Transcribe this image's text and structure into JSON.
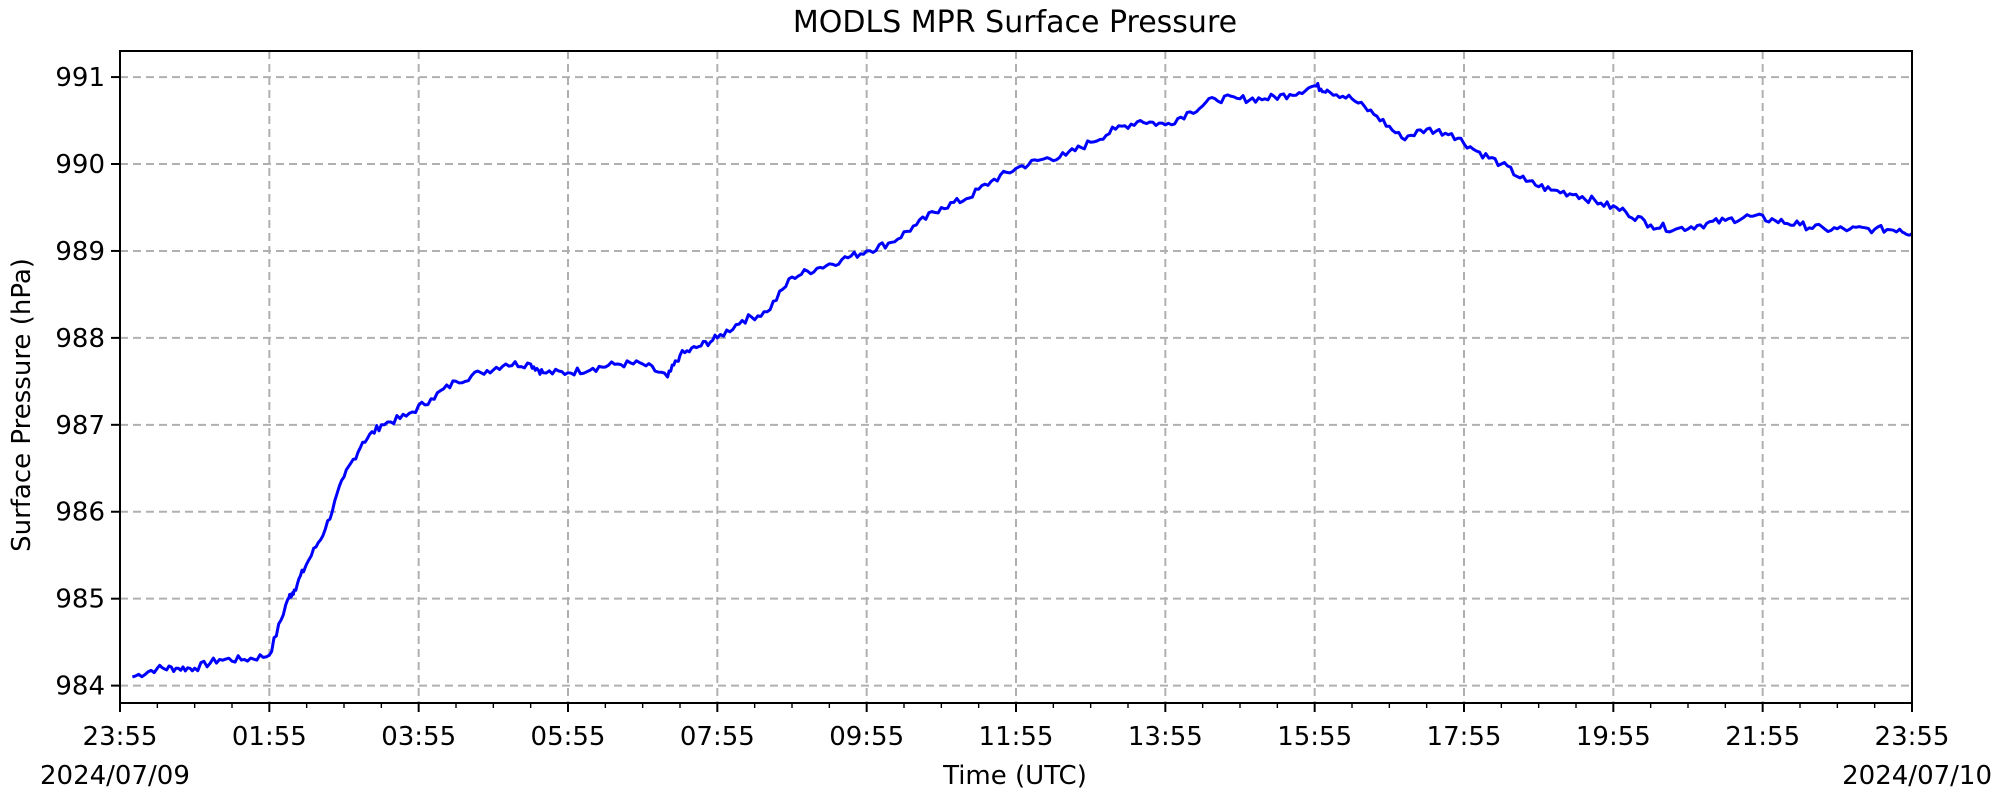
{
  "chart_data": {
    "type": "line",
    "title": "MODLS MPR Surface Pressure",
    "xlabel": "Time (UTC)",
    "ylabel": "Surface Pressure (hPa)",
    "x_unit": "hours",
    "x_tick_labels": [
      "23:55",
      "01:55",
      "03:55",
      "05:55",
      "07:55",
      "09:55",
      "11:55",
      "13:55",
      "15:55",
      "17:55",
      "19:55",
      "21:55",
      "23:55"
    ],
    "x_date_labels": {
      "start": "2024/07/09",
      "end": "2024/07/10"
    },
    "xlim": [
      "2024-07-09 23:55",
      "2024-07-10 23:55"
    ],
    "y_ticks": [
      984,
      985,
      986,
      987,
      988,
      989,
      990,
      991
    ],
    "ylim": [
      983.8,
      991.3
    ],
    "grid": true,
    "grid_style": "dashed",
    "legend": "none",
    "series": [
      {
        "color": "#0000ff",
        "x": [
          "2024-07-10 00:05",
          "2024-07-10 00:25",
          "2024-07-10 00:40",
          "2024-07-10 00:55",
          "2024-07-10 01:15",
          "2024-07-10 01:35",
          "2024-07-10 01:55",
          "2024-07-10 02:10",
          "2024-07-10 02:15",
          "2024-07-10 02:25",
          "2024-07-10 02:40",
          "2024-07-10 02:55",
          "2024-07-10 03:10",
          "2024-07-10 03:25",
          "2024-07-10 03:45",
          "2024-07-10 04:05",
          "2024-07-10 04:25",
          "2024-07-10 04:45",
          "2024-07-10 05:05",
          "2024-07-10 05:25",
          "2024-07-10 05:35",
          "2024-07-10 05:55",
          "2024-07-10 06:15",
          "2024-07-10 06:35",
          "2024-07-10 06:55",
          "2024-07-10 07:15",
          "2024-07-10 07:25",
          "2024-07-10 07:40",
          "2024-07-10 07:55",
          "2024-07-10 08:15",
          "2024-07-10 08:35",
          "2024-07-10 08:55",
          "2024-07-10 09:15",
          "2024-07-10 09:35",
          "2024-07-10 09:55",
          "2024-07-10 10:15",
          "2024-07-10 10:35",
          "2024-07-10 10:55",
          "2024-07-10 11:15",
          "2024-07-10 11:35",
          "2024-07-10 11:55",
          "2024-07-10 12:15",
          "2024-07-10 12:35",
          "2024-07-10 12:55",
          "2024-07-10 13:15",
          "2024-07-10 13:35",
          "2024-07-10 13:55",
          "2024-07-10 14:15",
          "2024-07-10 14:35",
          "2024-07-10 14:55",
          "2024-07-10 15:15",
          "2024-07-10 15:35",
          "2024-07-10 15:55",
          "2024-07-10 16:05",
          "2024-07-10 16:25",
          "2024-07-10 16:45",
          "2024-07-10 17:05",
          "2024-07-10 17:25",
          "2024-07-10 17:45",
          "2024-07-10 18:05",
          "2024-07-10 18:25",
          "2024-07-10 18:45",
          "2024-07-10 19:05",
          "2024-07-10 19:25",
          "2024-07-10 19:45",
          "2024-07-10 20:05",
          "2024-07-10 20:25",
          "2024-07-10 20:45",
          "2024-07-10 21:05",
          "2024-07-10 21:25",
          "2024-07-10 21:45",
          "2024-07-10 22:05",
          "2024-07-10 22:25",
          "2024-07-10 22:45",
          "2024-07-10 23:05",
          "2024-07-10 23:25",
          "2024-07-10 23:45",
          "2024-07-10 23:55"
        ],
        "values": [
          984.1,
          984.2,
          984.2,
          984.2,
          984.3,
          984.3,
          984.35,
          985.0,
          985.1,
          985.4,
          985.8,
          986.4,
          986.8,
          987.0,
          987.1,
          987.3,
          987.5,
          987.6,
          987.7,
          987.7,
          987.6,
          987.6,
          987.65,
          987.7,
          987.7,
          987.55,
          987.8,
          987.9,
          988.0,
          988.2,
          988.3,
          988.7,
          988.8,
          988.9,
          989.0,
          989.1,
          989.3,
          989.5,
          989.6,
          989.8,
          989.95,
          990.05,
          990.1,
          990.25,
          990.4,
          990.5,
          990.45,
          990.6,
          990.75,
          990.75,
          990.75,
          990.8,
          990.9,
          990.85,
          990.75,
          990.55,
          990.3,
          990.4,
          990.35,
          990.15,
          990.0,
          989.8,
          989.7,
          989.65,
          989.55,
          989.45,
          989.3,
          989.25,
          989.3,
          989.35,
          989.4,
          989.35,
          989.3,
          989.25,
          989.25,
          989.25,
          989.25,
          989.2
        ]
      }
    ]
  }
}
